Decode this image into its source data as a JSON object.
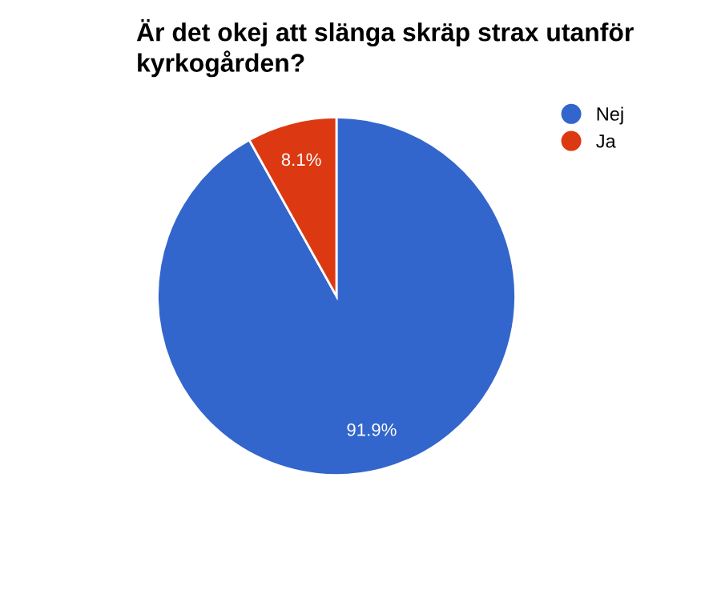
{
  "chart_data": {
    "type": "pie",
    "title": "Är det okej att slänga skräp strax utanför kyrkogården?",
    "categories": [
      "Nej",
      "Ja"
    ],
    "values": [
      91.9,
      8.1
    ],
    "colors": [
      "#3366cc",
      "#dc3912"
    ],
    "value_labels": [
      "91.9%",
      "8.1%"
    ],
    "legend": "top right"
  }
}
